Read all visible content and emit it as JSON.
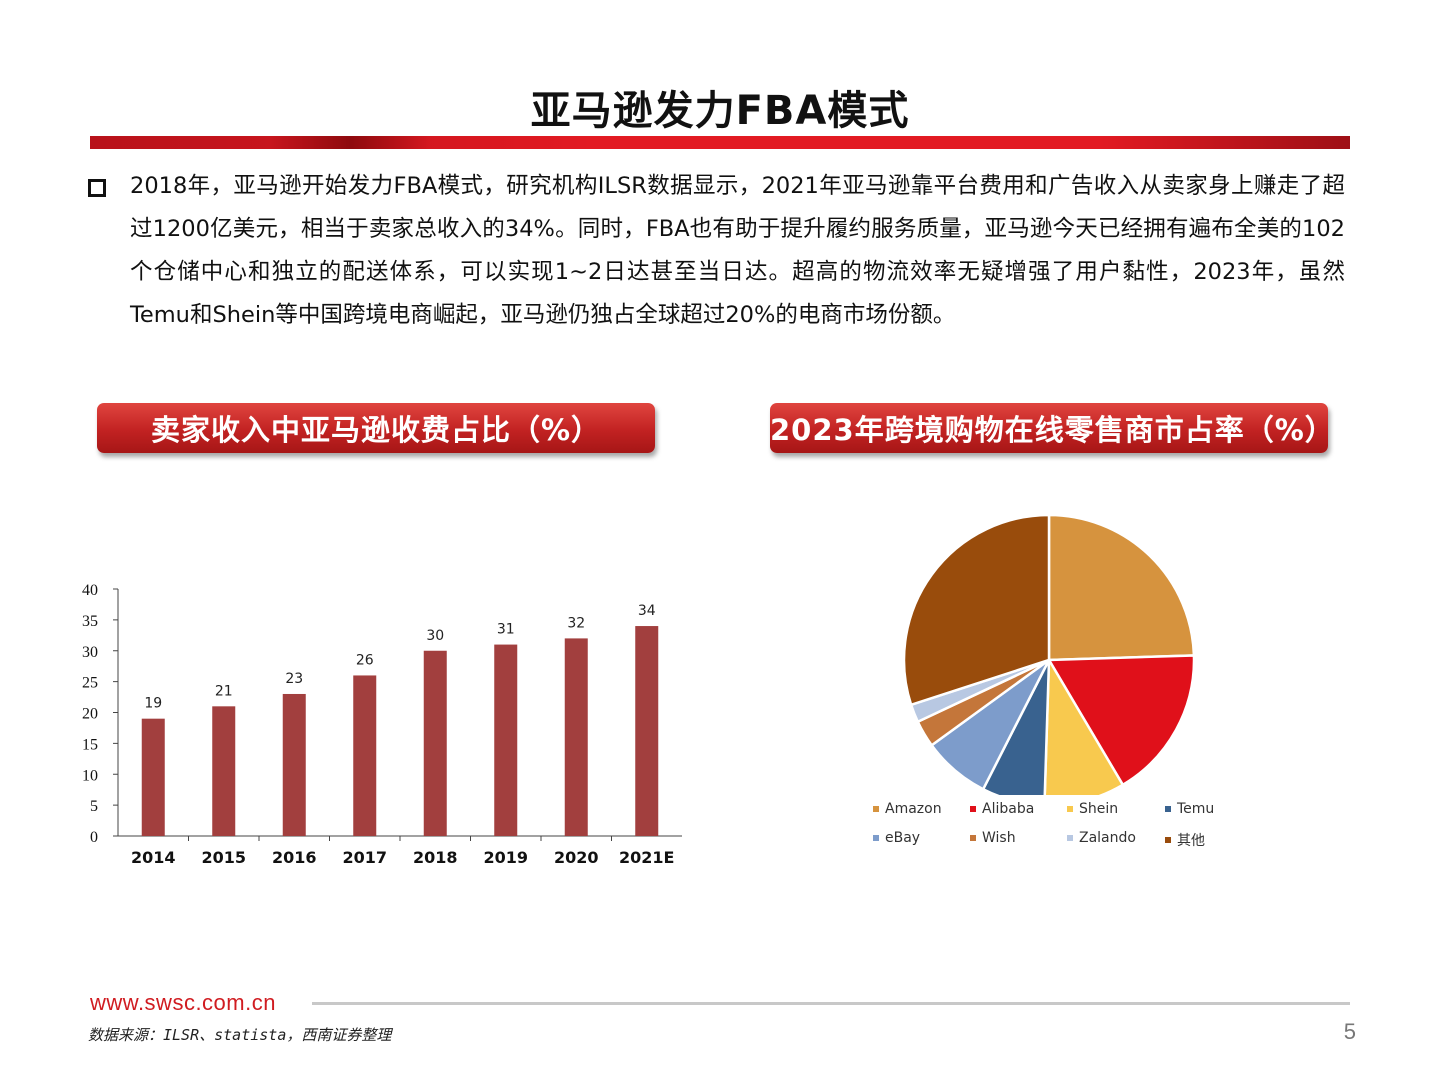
{
  "slide": {
    "title": "亚马逊发力FBA模式",
    "body": "2018年，亚马逊开始发力FBA模式，研究机构ILSR数据显示，2021年亚马逊靠平台费用和广告收入从卖家身上赚走了超过1200亿美元，相当于卖家总收入的34%。同时，FBA也有助于提升履约服务质量，亚马逊今天已经拥有遍布全美的102个仓储中心和独立的配送体系，可以实现1~2日达甚至当日达。超高的物流效率无疑增强了用户黏性，2023年，虽然Temu和Shein等中国跨境电商崛起，亚马逊仍独占全球超过20%的电商市场份额。",
    "header_left": "卖家收入中亚马逊收费占比（%）",
    "header_right": "2023年跨境购物在线零售商市占率（%）"
  },
  "footer": {
    "url": "www.swsc.com.cn",
    "source": "数据来源：ILSR、statista，西南证券整理",
    "page": "5"
  },
  "colors": {
    "brand_red": "#d01c21",
    "bar": "#a23f3e"
  },
  "chart_data": [
    {
      "type": "bar",
      "title": "卖家收入中亚马逊收费占比（%）",
      "categories": [
        "2014",
        "2015",
        "2016",
        "2017",
        "2018",
        "2019",
        "2020",
        "2021E"
      ],
      "values": [
        19,
        21,
        23,
        26,
        30,
        31,
        32,
        34
      ],
      "ylim": [
        0,
        40
      ],
      "yticks": [
        0,
        5,
        10,
        15,
        20,
        25,
        30,
        35,
        40
      ],
      "data_labels": true,
      "grid": false,
      "color": "#a23f3e"
    },
    {
      "type": "pie",
      "title": "2023年跨境购物在线零售商市占率（%）",
      "legend_position": "bottom",
      "slices": [
        {
          "label": "Amazon",
          "value": 24.5,
          "color": "#d6933e"
        },
        {
          "label": "Alibaba",
          "value": 17,
          "color": "#e0101a"
        },
        {
          "label": "Shein",
          "value": 9,
          "color": "#f8c94e"
        },
        {
          "label": "Temu",
          "value": 7,
          "color": "#39628f"
        },
        {
          "label": "eBay",
          "value": 7.5,
          "color": "#7d9ccb"
        },
        {
          "label": "Wish",
          "value": 3,
          "color": "#c4763a"
        },
        {
          "label": "Zalando",
          "value": 2,
          "color": "#b8c8e2"
        },
        {
          "label": "其他",
          "value": 30,
          "color": "#994c0c"
        }
      ]
    }
  ]
}
